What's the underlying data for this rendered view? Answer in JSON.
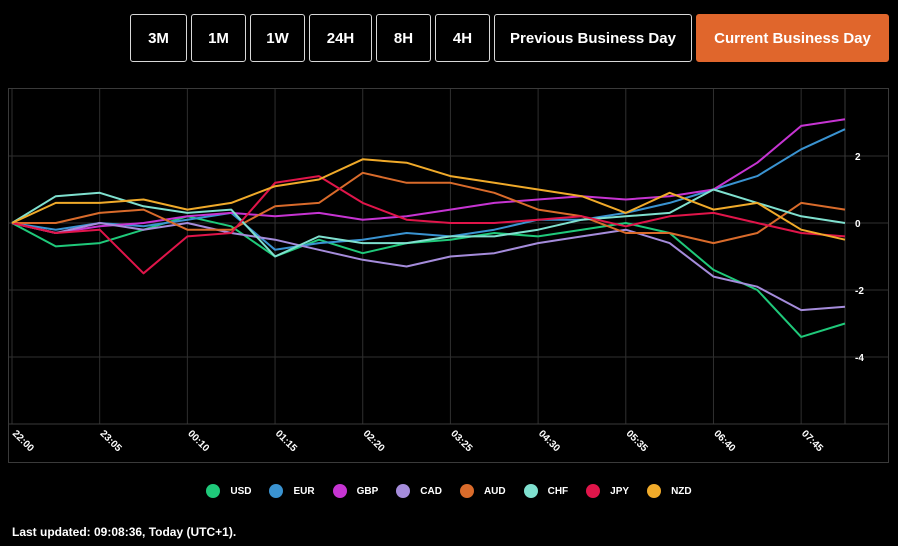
{
  "toolbar": {
    "buttons": [
      {
        "label": "3M",
        "active": false
      },
      {
        "label": "1M",
        "active": false
      },
      {
        "label": "1W",
        "active": false
      },
      {
        "label": "24H",
        "active": false
      },
      {
        "label": "8H",
        "active": false
      },
      {
        "label": "4H",
        "active": false
      },
      {
        "label": "Previous Business Day",
        "active": false
      },
      {
        "label": "Current Business Day",
        "active": true
      }
    ],
    "active_color": "#e0662c"
  },
  "footer": {
    "last_updated": "Last updated: 09:08:36, Today (UTC+1)."
  },
  "chart_data": {
    "type": "line",
    "x": [
      "22:00",
      "22:30",
      "23:05",
      "23:35",
      "00:10",
      "00:40",
      "01:15",
      "01:45",
      "02:20",
      "02:50",
      "03:25",
      "03:55",
      "04:30",
      "05:00",
      "05:35",
      "06:05",
      "06:40",
      "07:10",
      "07:45",
      "08:00"
    ],
    "x_ticks": [
      "22:00",
      "23:05",
      "00:10",
      "01:15",
      "02:20",
      "03:25",
      "04:30",
      "05:35",
      "06:40",
      "07:45"
    ],
    "y_ticks": [
      2,
      0,
      -2,
      -4
    ],
    "ylim": [
      -6,
      4
    ],
    "grid": true,
    "legend_position": "bottom-center",
    "series": [
      {
        "name": "USD",
        "color": "#1fc97a",
        "values": [
          0,
          -0.7,
          -0.6,
          -0.2,
          0.2,
          -0.1,
          -1.0,
          -0.5,
          -0.9,
          -0.6,
          -0.5,
          -0.3,
          -0.4,
          -0.2,
          0.0,
          -0.3,
          -1.4,
          -2.0,
          -3.4,
          -3.0
        ]
      },
      {
        "name": "EUR",
        "color": "#3a93d1",
        "values": [
          0,
          -0.2,
          0.0,
          -0.1,
          0.1,
          0.3,
          -0.8,
          -0.6,
          -0.5,
          -0.3,
          -0.4,
          -0.2,
          0.1,
          0.1,
          0.3,
          0.6,
          1.0,
          1.4,
          2.2,
          2.8
        ]
      },
      {
        "name": "GBP",
        "color": "#c634d2",
        "values": [
          0,
          -0.3,
          -0.1,
          0.0,
          0.2,
          0.3,
          0.2,
          0.3,
          0.1,
          0.2,
          0.4,
          0.6,
          0.7,
          0.8,
          0.7,
          0.8,
          1.0,
          1.8,
          2.9,
          3.1
        ]
      },
      {
        "name": "CAD",
        "color": "#a58cdb",
        "values": [
          0,
          -0.3,
          0.0,
          -0.2,
          0.0,
          -0.3,
          -0.5,
          -0.8,
          -1.1,
          -1.3,
          -1.0,
          -0.9,
          -0.6,
          -0.4,
          -0.2,
          -0.6,
          -1.6,
          -1.9,
          -2.6,
          -2.5
        ]
      },
      {
        "name": "AUD",
        "color": "#d96b2b",
        "values": [
          0,
          0.0,
          0.3,
          0.4,
          -0.2,
          -0.2,
          0.5,
          0.6,
          1.5,
          1.2,
          1.2,
          0.9,
          0.4,
          0.2,
          -0.3,
          -0.3,
          -0.6,
          -0.3,
          0.6,
          0.4
        ]
      },
      {
        "name": "CHF",
        "color": "#7fe0cf",
        "values": [
          0,
          0.8,
          0.9,
          0.5,
          0.3,
          0.4,
          -1.0,
          -0.4,
          -0.6,
          -0.6,
          -0.4,
          -0.4,
          -0.2,
          0.1,
          0.2,
          0.3,
          1.0,
          0.6,
          0.2,
          0.0
        ]
      },
      {
        "name": "JPY",
        "color": "#e0154a",
        "values": [
          0,
          -0.3,
          -0.2,
          -1.5,
          -0.4,
          -0.3,
          1.2,
          1.4,
          0.6,
          0.1,
          0.0,
          0.0,
          0.1,
          0.2,
          -0.1,
          0.2,
          0.3,
          0.0,
          -0.3,
          -0.4
        ]
      },
      {
        "name": "NZD",
        "color": "#f0aa2a",
        "values": [
          0,
          0.6,
          0.6,
          0.7,
          0.4,
          0.6,
          1.1,
          1.3,
          1.9,
          1.8,
          1.4,
          1.2,
          1.0,
          0.8,
          0.3,
          0.9,
          0.4,
          0.6,
          -0.2,
          -0.5
        ]
      }
    ]
  }
}
